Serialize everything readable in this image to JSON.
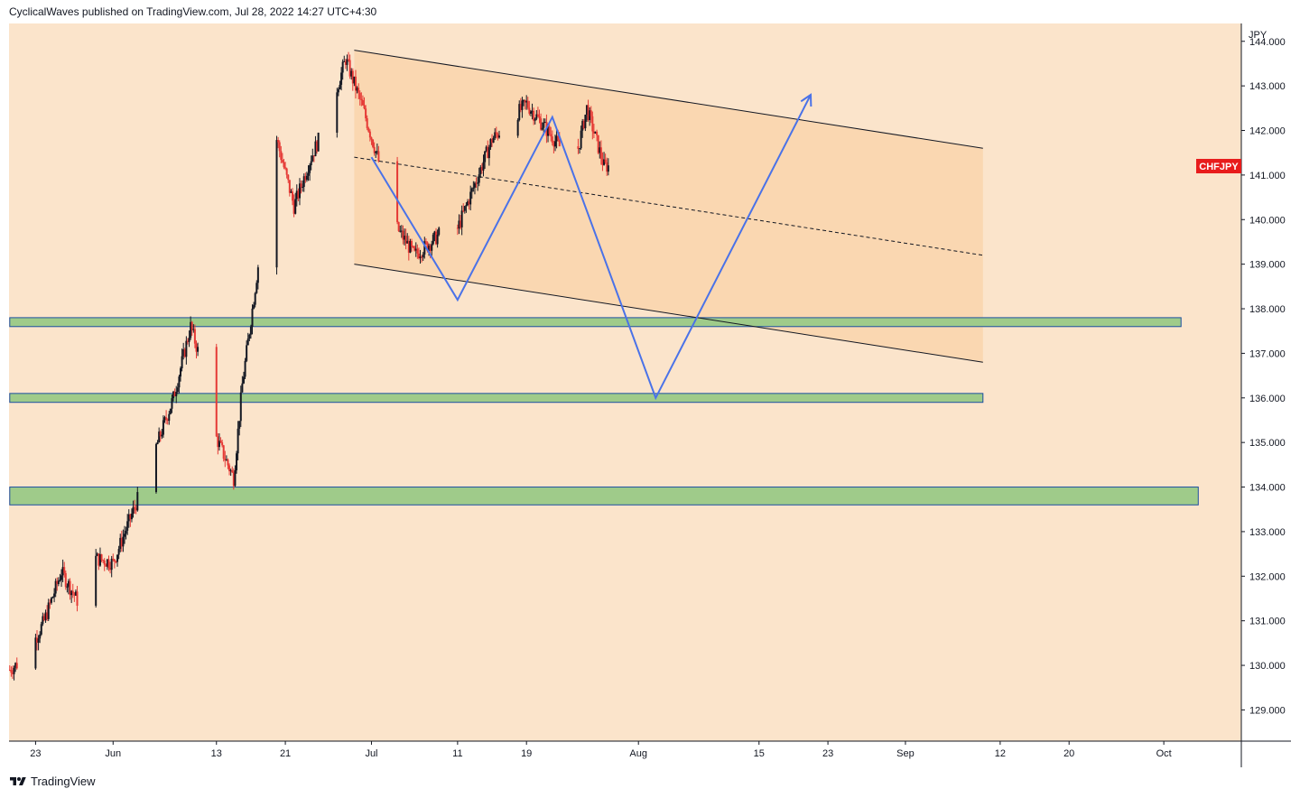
{
  "header": {
    "publisher_line": "CyclicalWaves published on TradingView.com, Jul 28, 2022 14:27 UTC+4:30"
  },
  "footer": {
    "brand": "TradingView",
    "logo_icon": "tradingview-logo-icon"
  },
  "colors": {
    "plot_bg": "#fbe4cb",
    "channel_fill": "#f9d3a8",
    "up_candle": "#131722",
    "down_candle": "#e53935",
    "zone_fill": "#9fcb8a",
    "zone_border": "#1b4fa0",
    "projection_line": "#4a72e8",
    "ticker_bg": "#e81c1c"
  },
  "chart_data": {
    "type": "candlestick",
    "symbol": "CHFJPY",
    "currency_label": "JPY",
    "y_ticks": [
      "144.000",
      "143.000",
      "142.000",
      "141.000",
      "140.000",
      "139.000",
      "138.000",
      "137.000",
      "136.000",
      "135.000",
      "134.000",
      "133.000",
      "132.000",
      "131.000",
      "130.000",
      "129.000"
    ],
    "ylim": [
      128.3,
      144.4
    ],
    "x_ticks": [
      "23",
      "Jun",
      "13",
      "21",
      "Jul",
      "11",
      "19",
      "Aug",
      "15",
      "23",
      "Sep",
      "12",
      "20",
      "Oct"
    ],
    "x_tick_dates": [
      "2022-05-23",
      "2022-06-01",
      "2022-06-13",
      "2022-06-21",
      "2022-07-01",
      "2022-07-11",
      "2022-07-19",
      "2022-08-01",
      "2022-08-15",
      "2022-08-23",
      "2022-09-01",
      "2022-09-12",
      "2022-09-20",
      "2022-10-01"
    ],
    "xlim": [
      "2022-05-19T22:00",
      "2022-10-10T00:00"
    ],
    "close_path": [
      [
        "2022-05-20",
        129.9
      ],
      [
        "2022-05-22",
        130.2
      ],
      [
        "2022-05-24",
        131.0
      ],
      [
        "2022-05-26",
        132.1
      ],
      [
        "2022-05-28",
        131.4
      ],
      [
        "2022-05-30",
        132.4
      ],
      [
        "2022-06-01",
        132.3
      ],
      [
        "2022-06-04",
        133.8
      ],
      [
        "2022-06-06",
        134.9
      ],
      [
        "2022-06-08",
        136.0
      ],
      [
        "2022-06-10",
        137.6
      ],
      [
        "2022-06-12",
        136.3
      ],
      [
        "2022-06-13",
        135.1
      ],
      [
        "2022-06-15",
        134.2
      ],
      [
        "2022-06-16",
        136.3
      ],
      [
        "2022-06-18",
        139.2
      ],
      [
        "2022-06-20",
        141.8
      ],
      [
        "2022-06-22",
        140.3
      ],
      [
        "2022-06-24",
        141.4
      ],
      [
        "2022-06-26",
        142.3
      ],
      [
        "2022-06-28",
        143.6
      ],
      [
        "2022-06-30",
        142.5
      ],
      [
        "2022-07-02",
        141.2
      ],
      [
        "2022-07-04",
        139.8
      ],
      [
        "2022-07-06",
        139.2
      ],
      [
        "2022-07-08",
        139.5
      ],
      [
        "2022-07-09",
        139.7
      ],
      [
        "2022-07-11",
        139.8
      ],
      [
        "2022-07-13",
        140.8
      ],
      [
        "2022-07-15",
        141.8
      ],
      [
        "2022-07-17",
        142.2
      ],
      [
        "2022-07-19",
        142.6
      ],
      [
        "2022-07-21",
        142.1
      ],
      [
        "2022-07-23",
        141.6
      ],
      [
        "2022-07-25",
        141.6
      ],
      [
        "2022-07-26",
        142.5
      ],
      [
        "2022-07-28",
        141.2
      ]
    ],
    "channel": {
      "upper": [
        [
          "2022-06-29",
          143.8
        ],
        [
          "2022-09-10",
          141.6
        ]
      ],
      "middle": [
        [
          "2022-06-29",
          141.4
        ],
        [
          "2022-09-10",
          139.2
        ]
      ],
      "lower": [
        [
          "2022-06-29",
          139.0
        ],
        [
          "2022-09-10",
          136.8
        ]
      ]
    },
    "zones": [
      {
        "start": "2022-05-20",
        "end": "2022-10-03",
        "top": 137.8,
        "bottom": 137.6
      },
      {
        "start": "2022-05-20",
        "end": "2022-09-10",
        "top": 136.1,
        "bottom": 135.9
      },
      {
        "start": "2022-05-20",
        "end": "2022-10-05",
        "top": 134.0,
        "bottom": 133.6
      }
    ],
    "projection_path": [
      [
        "2022-07-01",
        141.4
      ],
      [
        "2022-07-11",
        138.2
      ],
      [
        "2022-07-22",
        142.3
      ],
      [
        "2022-08-03",
        136.0
      ],
      [
        "2022-08-21",
        142.8
      ]
    ]
  }
}
